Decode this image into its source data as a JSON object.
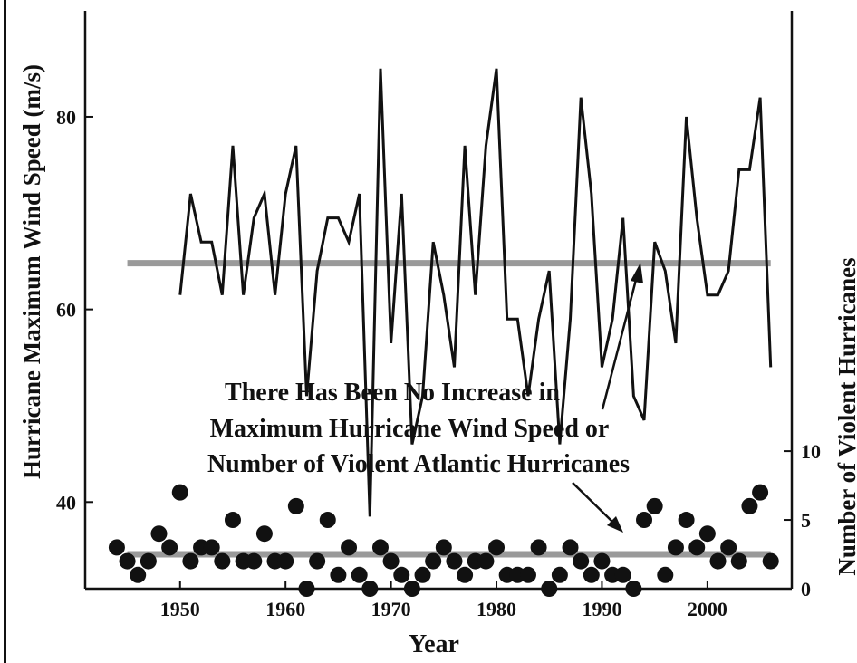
{
  "chart_data": {
    "type": "line",
    "xlabel": "Year",
    "ylabel": "Hurricane Maximum Wind Speed (m/s)",
    "y2label": "Number of Violent Hurricanes",
    "xlim": [
      1941,
      2008
    ],
    "ylim": [
      31,
      91
    ],
    "y2lim": [
      0,
      42
    ],
    "x_ticks": [
      1950,
      1960,
      1970,
      1980,
      1990,
      2000
    ],
    "y_ticks": [
      40,
      60,
      80
    ],
    "y2_ticks": [
      0,
      5,
      10
    ],
    "grid": false,
    "annotation": {
      "lines": [
        "There Has Been No Increase in",
        "Maximum Hurricane Wind Speed or",
        "Number of Violent Atlantic Hurricanes"
      ]
    },
    "series": [
      {
        "style": "line",
        "axis": "left",
        "color": "#111111",
        "x": [
          1950,
          1951,
          1952,
          1953,
          1954,
          1955,
          1956,
          1957,
          1958,
          1959,
          1960,
          1961,
          1962,
          1963,
          1964,
          1965,
          1966,
          1967,
          1968,
          1969,
          1970,
          1971,
          1972,
          1973,
          1974,
          1975,
          1976,
          1977,
          1978,
          1979,
          1980,
          1981,
          1982,
          1983,
          1984,
          1985,
          1986,
          1987,
          1988,
          1989,
          1990,
          1991,
          1992,
          1993,
          1994,
          1995,
          1996,
          1997,
          1998,
          1999,
          2000,
          2001,
          2002,
          2003,
          2004,
          2005,
          2006
        ],
        "values": [
          61.5,
          72,
          67,
          67,
          61.5,
          77,
          61.5,
          69.5,
          72,
          61.5,
          72,
          77,
          51,
          64,
          69.5,
          69.5,
          67,
          72,
          38.5,
          85,
          56.5,
          72,
          46,
          51,
          67,
          61.5,
          54,
          77,
          61.5,
          77,
          85,
          59,
          59,
          51,
          59,
          64,
          46,
          59,
          82,
          72,
          54,
          59,
          69.5,
          51,
          48.5,
          67,
          64,
          56.5,
          80,
          69.5,
          61.5,
          61.5,
          64,
          74.5,
          74.5,
          82,
          54
        ]
      },
      {
        "style": "scatter",
        "axis": "right",
        "color": "#111111",
        "x": [
          1944,
          1945,
          1946,
          1947,
          1948,
          1949,
          1950,
          1951,
          1952,
          1953,
          1954,
          1955,
          1956,
          1957,
          1958,
          1959,
          1960,
          1961,
          1962,
          1963,
          1964,
          1965,
          1966,
          1967,
          1968,
          1969,
          1970,
          1971,
          1972,
          1973,
          1974,
          1975,
          1976,
          1977,
          1978,
          1979,
          1980,
          1981,
          1982,
          1983,
          1984,
          1985,
          1986,
          1987,
          1988,
          1989,
          1990,
          1991,
          1992,
          1993,
          1994,
          1995,
          1996,
          1997,
          1998,
          1999,
          2000,
          2001,
          2002,
          2003,
          2004,
          2005,
          2006
        ],
        "values": [
          3,
          2,
          1,
          2,
          4,
          3,
          7,
          2,
          3,
          3,
          2,
          5,
          2,
          2,
          4,
          2,
          2,
          6,
          0,
          2,
          5,
          1,
          3,
          1,
          0,
          3,
          2,
          1,
          0,
          1,
          2,
          3,
          2,
          1,
          2,
          2,
          3,
          1,
          1,
          1,
          3,
          0,
          1,
          3,
          2,
          1,
          2,
          1,
          1,
          0,
          5,
          6,
          1,
          3,
          5,
          3,
          4,
          2,
          3,
          2,
          6,
          7,
          2
        ]
      },
      {
        "style": "mean-line",
        "axis": "left",
        "color": "#9a9a9a",
        "x": [
          1945,
          2006
        ],
        "values": [
          64.8,
          64.8
        ]
      },
      {
        "style": "mean-line",
        "axis": "right",
        "color": "#9a9a9a",
        "x": [
          1945,
          2006
        ],
        "values": [
          2.5,
          2.5
        ]
      }
    ]
  }
}
